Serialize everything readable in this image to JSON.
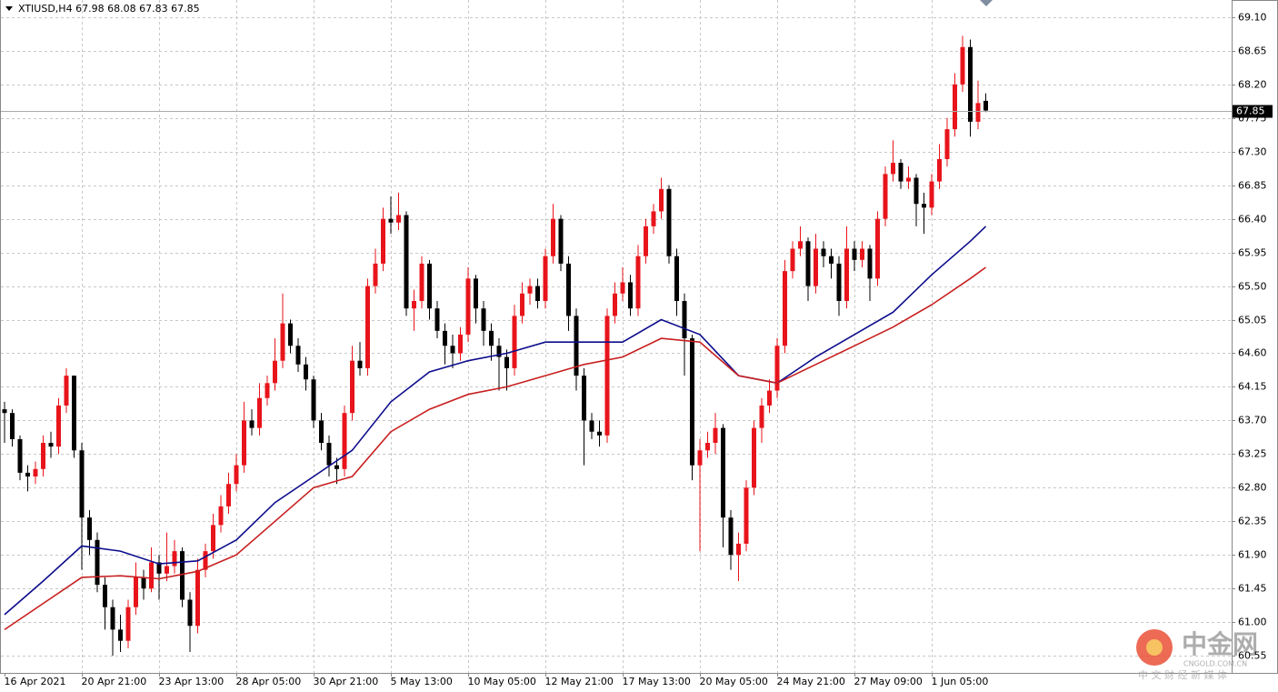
{
  "chart_data": {
    "type": "candlestick",
    "title": "XTIUSD,H4",
    "up_color": "#e8141b",
    "down_color": "#000000",
    "grid": true,
    "ylim": [
      60.32,
      69.33
    ],
    "yticks": [
      60.55,
      {
        "value": 61.0,
        "label": "61.00"
      },
      61.45,
      {
        "value": 61.9,
        "label": "61.90"
      },
      62.35,
      {
        "value": 62.8,
        "label": "62.80"
      },
      63.25,
      {
        "value": 63.7,
        "label": "63.70"
      },
      64.15,
      {
        "value": 64.6,
        "label": "64.60"
      },
      65.05,
      {
        "value": 65.5,
        "label": "65.50"
      },
      65.95,
      {
        "value": 66.4,
        "label": "66.40"
      },
      66.85,
      {
        "value": 67.3,
        "label": "67.30"
      },
      67.75,
      {
        "value": 68.2,
        "label": "68.20"
      },
      68.65,
      {
        "value": 69.1,
        "label": "69.10"
      }
    ],
    "categories": [
      "16 Apr 2021",
      null,
      null,
      null,
      null,
      null,
      null,
      null,
      null,
      null,
      "20 Apr 21:00",
      null,
      null,
      null,
      null,
      null,
      null,
      null,
      null,
      null,
      "23 Apr 13:00",
      null,
      null,
      null,
      null,
      null,
      null,
      null,
      null,
      null,
      "28 Apr 05:00",
      null,
      null,
      null,
      null,
      null,
      null,
      null,
      null,
      null,
      "30 Apr 21:00",
      null,
      null,
      null,
      null,
      null,
      null,
      null,
      null,
      null,
      "5 May 13:00",
      null,
      null,
      null,
      null,
      null,
      null,
      null,
      null,
      null,
      "10 May 05:00",
      null,
      null,
      null,
      null,
      null,
      null,
      null,
      null,
      null,
      "12 May 21:00",
      null,
      null,
      null,
      null,
      null,
      null,
      null,
      null,
      null,
      "17 May 13:00",
      null,
      null,
      null,
      null,
      null,
      null,
      null,
      null,
      null,
      "20 May 05:00",
      null,
      null,
      null,
      null,
      null,
      null,
      null,
      null,
      null,
      "24 May 21:00",
      null,
      null,
      null,
      null,
      null,
      null,
      null,
      null,
      null,
      "27 May 09:00",
      null,
      null,
      null,
      null,
      null,
      null,
      null,
      null,
      null,
      "1 Jun 05:00",
      null,
      null,
      null,
      null,
      null,
      null,
      null
    ],
    "open": [
      63.85,
      63.8,
      63.45,
      63.0,
      62.95,
      63.05,
      63.4,
      63.35,
      63.9,
      64.3,
      63.3,
      62.4,
      62.1,
      61.5,
      61.2,
      60.9,
      60.75,
      61.2,
      61.6,
      61.45,
      61.8,
      61.65,
      61.75,
      61.95,
      61.3,
      60.95,
      61.7,
      61.95,
      62.3,
      62.55,
      62.85,
      63.1,
      63.7,
      63.6,
      64.0,
      64.2,
      64.5,
      65.0,
      64.7,
      64.45,
      64.25,
      63.7,
      63.4,
      63.1,
      63.05,
      63.8,
      64.5,
      64.4,
      65.5,
      65.8,
      66.4,
      66.35,
      66.45,
      65.2,
      65.3,
      65.8,
      65.2,
      64.9,
      64.7,
      64.6,
      64.85,
      65.6,
      65.2,
      64.9,
      64.7,
      64.55,
      64.4,
      65.1,
      65.4,
      65.5,
      65.3,
      65.9,
      66.4,
      65.8,
      65.1,
      64.3,
      63.7,
      63.55,
      63.5,
      65.1,
      65.4,
      65.55,
      65.2,
      65.9,
      66.3,
      66.5,
      66.8,
      65.9,
      65.3,
      64.8,
      63.1,
      63.3,
      63.4,
      63.6,
      62.4,
      61.9,
      62.05,
      62.8,
      63.6,
      63.9,
      64.1,
      64.7,
      65.7,
      66.0,
      66.1,
      65.5,
      66.0,
      65.9,
      65.8,
      65.3,
      66.0,
      65.85,
      66.0,
      65.6,
      66.4,
      67.0,
      67.15,
      66.9,
      66.95,
      66.6,
      66.55,
      66.9,
      67.2,
      67.6,
      68.2,
      68.7,
      67.7,
      67.98
    ],
    "high": [
      63.95,
      63.85,
      63.5,
      63.1,
      63.15,
      63.5,
      63.55,
      64.0,
      64.4,
      64.3,
      63.4,
      62.5,
      62.2,
      61.6,
      61.3,
      61.1,
      61.3,
      61.8,
      61.7,
      62.0,
      61.9,
      62.2,
      62.1,
      62.0,
      61.4,
      61.85,
      62.05,
      62.45,
      62.7,
      63.0,
      63.25,
      63.95,
      63.85,
      64.2,
      64.3,
      64.8,
      65.4,
      65.05,
      64.8,
      64.55,
      64.3,
      63.8,
      63.5,
      63.2,
      63.9,
      64.7,
      64.75,
      65.6,
      66.0,
      66.55,
      66.7,
      66.75,
      66.5,
      65.45,
      65.9,
      65.85,
      65.3,
      65.0,
      64.85,
      64.95,
      65.75,
      65.65,
      65.3,
      65.0,
      64.8,
      64.65,
      65.25,
      65.55,
      65.6,
      65.6,
      66.0,
      66.6,
      66.45,
      65.9,
      65.2,
      64.4,
      63.8,
      63.7,
      65.2,
      65.55,
      65.75,
      65.65,
      66.05,
      66.4,
      66.6,
      66.95,
      66.85,
      66.0,
      65.4,
      64.85,
      63.45,
      63.55,
      63.8,
      63.65,
      62.5,
      62.2,
      62.9,
      63.7,
      64.0,
      64.25,
      64.8,
      65.85,
      66.1,
      66.3,
      66.15,
      66.2,
      66.1,
      66.0,
      65.9,
      66.3,
      66.1,
      66.1,
      66.05,
      66.5,
      67.1,
      67.45,
      67.2,
      67.1,
      67.0,
      66.75,
      67.0,
      67.4,
      67.75,
      68.35,
      68.85,
      68.8,
      68.25,
      68.08
    ],
    "low": [
      63.4,
      63.35,
      62.9,
      62.75,
      62.85,
      62.95,
      63.2,
      63.25,
      63.8,
      63.2,
      61.7,
      61.9,
      61.4,
      60.9,
      60.55,
      60.6,
      60.65,
      61.1,
      61.3,
      61.4,
      61.3,
      61.55,
      61.65,
      61.2,
      60.6,
      60.85,
      61.6,
      61.85,
      62.2,
      62.45,
      62.75,
      63.0,
      63.5,
      63.5,
      63.9,
      64.1,
      64.4,
      64.6,
      64.35,
      64.1,
      63.6,
      63.3,
      62.95,
      62.85,
      62.95,
      63.7,
      64.3,
      64.3,
      65.4,
      65.7,
      66.2,
      66.25,
      65.1,
      64.9,
      65.2,
      65.05,
      64.8,
      64.45,
      64.4,
      64.5,
      64.75,
      65.0,
      64.7,
      64.5,
      64.1,
      64.1,
      64.3,
      65.0,
      65.25,
      65.2,
      65.2,
      65.8,
      65.7,
      64.9,
      64.1,
      63.1,
      63.45,
      63.35,
      63.4,
      65.0,
      65.3,
      65.1,
      65.1,
      65.8,
      66.2,
      66.4,
      65.8,
      65.1,
      64.3,
      62.9,
      61.95,
      63.2,
      63.25,
      62.0,
      61.7,
      61.55,
      61.95,
      62.7,
      63.4,
      63.8,
      64.0,
      64.6,
      65.6,
      65.9,
      65.3,
      65.4,
      65.75,
      65.6,
      65.1,
      65.2,
      65.7,
      65.75,
      65.3,
      65.5,
      66.3,
      66.9,
      66.8,
      66.8,
      66.3,
      66.2,
      66.45,
      66.8,
      67.1,
      67.5,
      68.1,
      67.5,
      67.6,
      67.83
    ],
    "close": [
      63.8,
      63.45,
      63.0,
      62.95,
      63.05,
      63.4,
      63.35,
      63.9,
      64.3,
      63.3,
      62.4,
      62.1,
      61.5,
      61.2,
      60.9,
      60.75,
      61.2,
      61.6,
      61.45,
      61.8,
      61.65,
      61.75,
      61.95,
      61.3,
      60.95,
      61.7,
      61.95,
      62.3,
      62.55,
      62.85,
      63.1,
      63.7,
      63.6,
      64.0,
      64.2,
      64.5,
      65.0,
      64.7,
      64.45,
      64.25,
      63.7,
      63.4,
      63.1,
      63.05,
      63.8,
      64.5,
      64.4,
      65.5,
      65.8,
      66.4,
      66.35,
      66.45,
      65.2,
      65.3,
      65.8,
      65.2,
      64.9,
      64.7,
      64.6,
      64.85,
      65.6,
      65.2,
      64.9,
      64.7,
      64.55,
      64.4,
      65.1,
      65.4,
      65.5,
      65.3,
      65.9,
      66.4,
      65.8,
      65.1,
      64.3,
      63.7,
      63.55,
      63.5,
      65.1,
      65.4,
      65.55,
      65.2,
      65.9,
      66.3,
      66.5,
      66.8,
      65.9,
      65.3,
      64.8,
      63.1,
      63.3,
      63.4,
      63.6,
      62.4,
      61.9,
      62.05,
      62.8,
      63.6,
      63.9,
      64.1,
      64.7,
      65.7,
      66.0,
      66.1,
      65.5,
      66.0,
      65.9,
      65.8,
      65.3,
      66.0,
      65.85,
      66.0,
      65.6,
      66.4,
      67.0,
      67.15,
      66.9,
      66.95,
      66.6,
      66.55,
      66.9,
      67.2,
      67.6,
      68.2,
      68.7,
      67.7,
      67.95,
      67.85
    ],
    "series": [
      {
        "color": "#0c0c8c",
        "x": [
          0,
          5,
          10,
          15,
          20,
          25,
          30,
          35,
          40,
          45,
          50,
          55,
          60,
          65,
          70,
          75,
          80,
          85,
          90,
          95,
          100,
          105,
          110,
          115,
          120,
          125,
          127
        ],
        "values": [
          61.1,
          61.55,
          62.02,
          61.95,
          61.78,
          61.82,
          62.1,
          62.6,
          62.95,
          63.3,
          63.95,
          64.35,
          64.5,
          64.6,
          64.75,
          64.75,
          64.75,
          65.05,
          64.85,
          64.3,
          64.2,
          64.55,
          64.85,
          65.15,
          65.65,
          66.1,
          66.3
        ]
      },
      {
        "color": "#c81e1e",
        "x": [
          0,
          5,
          10,
          15,
          20,
          25,
          30,
          35,
          40,
          45,
          50,
          55,
          60,
          65,
          70,
          75,
          80,
          85,
          90,
          95,
          100,
          105,
          110,
          115,
          120,
          125,
          127
        ],
        "values": [
          60.9,
          61.25,
          61.6,
          61.62,
          61.58,
          61.68,
          61.9,
          62.35,
          62.8,
          62.95,
          63.55,
          63.85,
          64.05,
          64.15,
          64.3,
          64.45,
          64.55,
          64.8,
          64.75,
          64.3,
          64.2,
          64.45,
          64.7,
          64.95,
          65.25,
          65.6,
          65.75
        ]
      }
    ]
  },
  "watermark": {
    "logo": "中金网",
    "site": "CNGOLD.COM.CN",
    "slogan": "中 文 财 经 新 媒 体"
  }
}
